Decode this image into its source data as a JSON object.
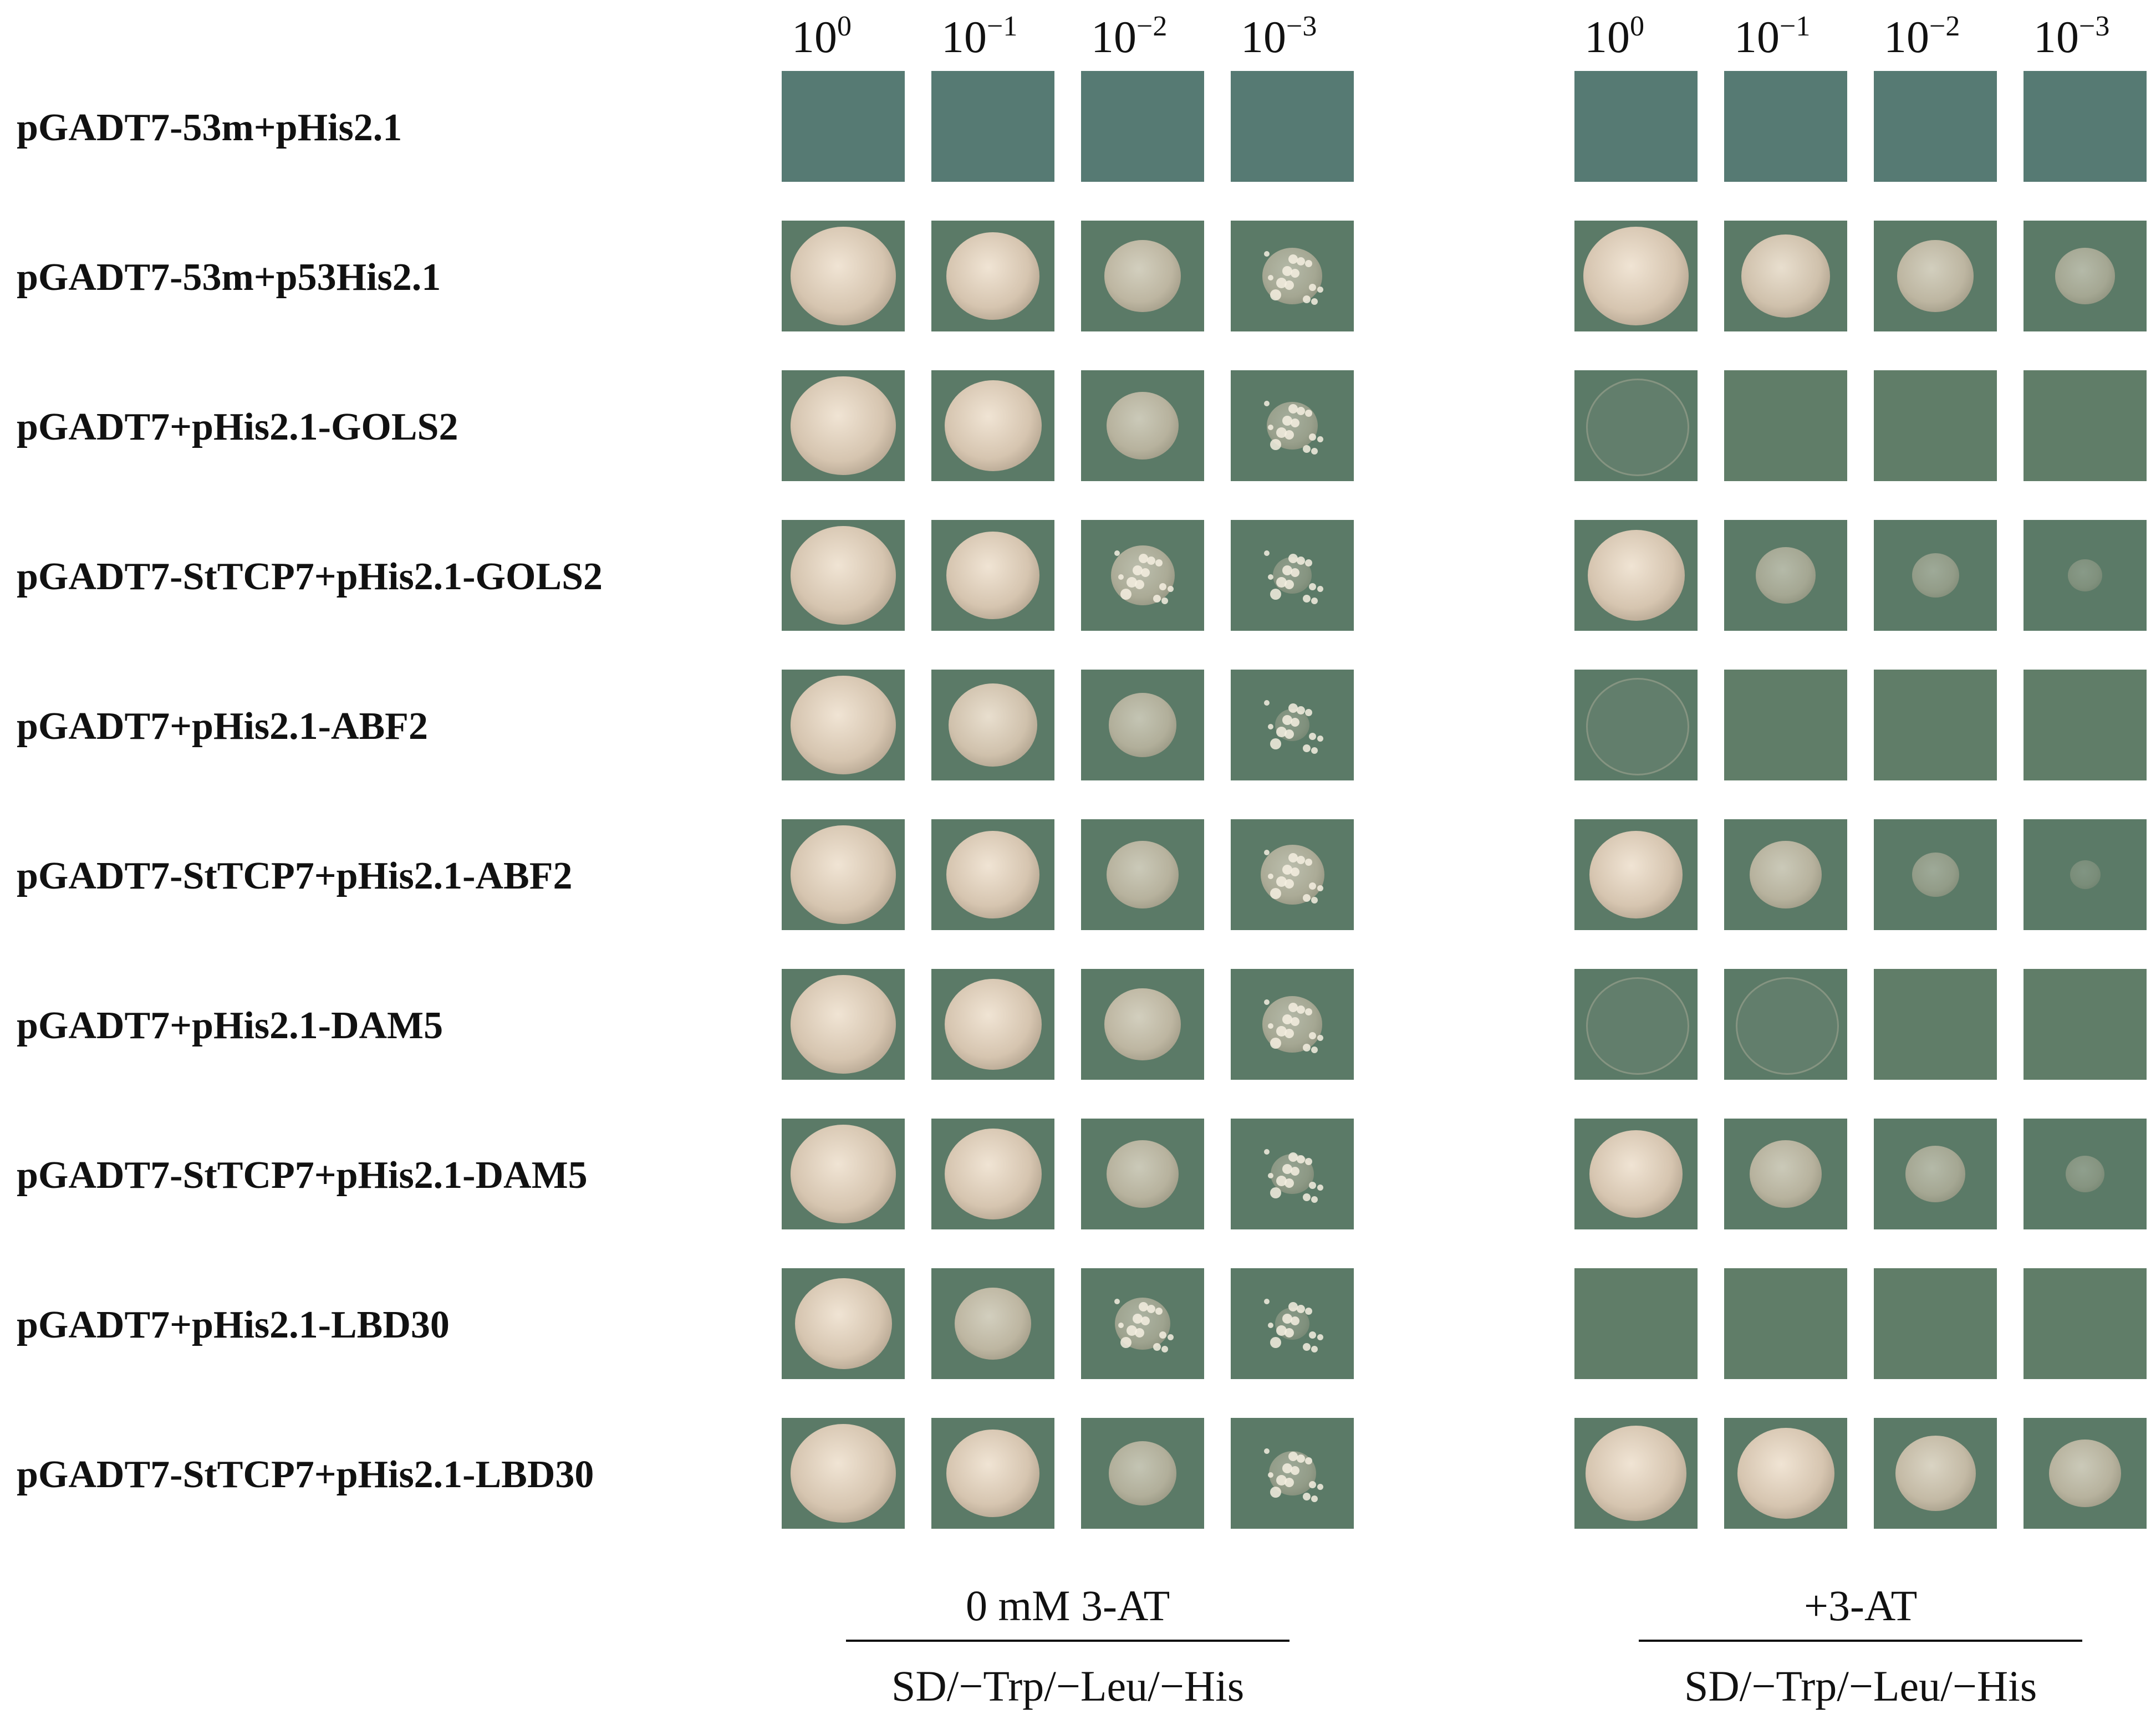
{
  "dilutions": [
    {
      "base": "10",
      "exp": "0"
    },
    {
      "base": "10",
      "exp": "−1"
    },
    {
      "base": "10",
      "exp": "−2"
    },
    {
      "base": "10",
      "exp": "−3"
    }
  ],
  "rows": [
    "pGADT7-53m+pHis2.1",
    "pGADT7-53m+p53His2.1",
    "pGADT7+pHis2.1-GOLS2",
    "pGADT7-StTCP7+pHis2.1-GOLS2",
    "pGADT7+pHis2.1-ABF2",
    "pGADT7-StTCP7+pHis2.1-ABF2",
    "pGADT7+pHis2.1-DAM5",
    "pGADT7-StTCP7+pHis2.1-DAM5",
    "pGADT7+pHis2.1-LBD30",
    "pGADT7-StTCP7+pHis2.1-LBD30"
  ],
  "panels": [
    {
      "condition": "0 mM 3-AT",
      "medium": "SD/−Trp/−Leu/−His",
      "growth": [
        [
          0,
          0,
          0,
          0
        ],
        [
          1.0,
          0.85,
          0.65,
          0.45
        ],
        [
          1.0,
          0.9,
          0.6,
          0.35
        ],
        [
          1.0,
          0.85,
          0.5,
          0.2
        ],
        [
          1.0,
          0.8,
          0.55,
          0.15
        ],
        [
          1.0,
          0.85,
          0.6,
          0.5
        ],
        [
          1.0,
          0.9,
          0.65,
          0.45
        ],
        [
          1.0,
          0.9,
          0.6,
          0.25
        ],
        [
          0.9,
          0.65,
          0.4,
          0.15
        ],
        [
          1.0,
          0.85,
          0.55,
          0.3
        ]
      ]
    },
    {
      "condition": "+3-AT",
      "medium": "SD/−Trp/−Leu/−His",
      "growth": [
        [
          0,
          0,
          0,
          0
        ],
        [
          1.0,
          0.8,
          0.65,
          0.45
        ],
        [
          0.05,
          0,
          0,
          0
        ],
        [
          0.9,
          0.45,
          0.3,
          0.15
        ],
        [
          0.05,
          0,
          0,
          0
        ],
        [
          0.85,
          0.6,
          0.3,
          0.1
        ],
        [
          0.05,
          0.05,
          0,
          0
        ],
        [
          0.85,
          0.6,
          0.45,
          0.2
        ],
        [
          0,
          0,
          0,
          0
        ],
        [
          0.95,
          0.9,
          0.7,
          0.6
        ]
      ]
    }
  ],
  "colors": {
    "agar": "#5b7a67",
    "agar_dark": "#4e6b5d",
    "colony_core": "#e9dccb",
    "colony_edge": "#c7b49c"
  }
}
